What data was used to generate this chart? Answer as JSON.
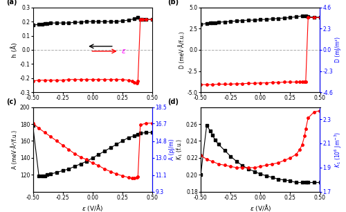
{
  "panel_a": {
    "ylabel": "h (Å)",
    "xlim": [
      -0.5,
      0.5
    ],
    "ylim": [
      -0.3,
      0.3
    ],
    "yticks": [
      -0.3,
      -0.2,
      -0.1,
      0.0,
      0.1,
      0.2,
      0.3
    ],
    "xticks": [
      -0.5,
      -0.25,
      0.0,
      0.25,
      0.5
    ],
    "black_x": [
      -0.5,
      -0.45,
      -0.42,
      -0.4,
      -0.38,
      -0.35,
      -0.3,
      -0.25,
      -0.2,
      -0.15,
      -0.1,
      -0.05,
      0.0,
      0.05,
      0.1,
      0.15,
      0.2,
      0.25,
      0.3,
      0.35,
      0.38,
      0.4,
      0.42,
      0.45,
      0.5
    ],
    "black_y": [
      0.175,
      0.18,
      0.18,
      0.185,
      0.185,
      0.19,
      0.19,
      0.19,
      0.19,
      0.195,
      0.195,
      0.2,
      0.2,
      0.2,
      0.2,
      0.2,
      0.2,
      0.205,
      0.21,
      0.22,
      0.23,
      0.215,
      0.215,
      0.215,
      0.215
    ],
    "red_x": [
      -0.5,
      -0.45,
      -0.4,
      -0.35,
      -0.3,
      -0.25,
      -0.2,
      -0.15,
      -0.1,
      -0.05,
      0.0,
      0.05,
      0.1,
      0.15,
      0.2,
      0.25,
      0.3,
      0.33,
      0.35,
      0.37,
      0.38,
      0.4,
      0.42,
      0.45,
      0.5
    ],
    "red_y": [
      -0.22,
      -0.215,
      -0.215,
      -0.215,
      -0.215,
      -0.215,
      -0.21,
      -0.21,
      -0.21,
      -0.21,
      -0.21,
      -0.21,
      -0.21,
      -0.21,
      -0.21,
      -0.21,
      -0.215,
      -0.22,
      -0.23,
      -0.235,
      -0.22,
      0.215,
      0.215,
      0.215,
      0.215
    ],
    "label": "(a)"
  },
  "panel_b": {
    "ylabel_left": "D (meV·Å/f.u.)",
    "ylabel_right": "D (mJ/m²)",
    "xlim": [
      -0.5,
      0.5
    ],
    "ylim_left": [
      -5.0,
      5.0
    ],
    "ylim_right": [
      -4.6,
      4.6
    ],
    "yticks_left": [
      -5.0,
      -2.5,
      0.0,
      2.5,
      5.0
    ],
    "yticks_right": [
      -4.6,
      -2.3,
      0.0,
      2.3,
      4.6
    ],
    "xticks": [
      -0.5,
      -0.25,
      0.0,
      0.25,
      0.5
    ],
    "black_x": [
      -0.5,
      -0.45,
      -0.42,
      -0.4,
      -0.38,
      -0.35,
      -0.3,
      -0.25,
      -0.2,
      -0.15,
      -0.1,
      -0.05,
      0.0,
      0.05,
      0.1,
      0.15,
      0.2,
      0.25,
      0.3,
      0.35,
      0.38,
      0.4,
      0.45,
      0.5
    ],
    "black_y": [
      3.0,
      3.1,
      3.15,
      3.2,
      3.2,
      3.25,
      3.3,
      3.35,
      3.4,
      3.45,
      3.5,
      3.5,
      3.55,
      3.6,
      3.65,
      3.7,
      3.75,
      3.8,
      3.9,
      4.0,
      4.0,
      3.9,
      3.85,
      3.85
    ],
    "red_x": [
      -0.5,
      -0.45,
      -0.4,
      -0.35,
      -0.3,
      -0.25,
      -0.2,
      -0.15,
      -0.1,
      -0.05,
      0.0,
      0.05,
      0.1,
      0.15,
      0.2,
      0.25,
      0.3,
      0.33,
      0.35,
      0.37,
      0.38,
      0.4,
      0.45,
      0.5
    ],
    "red_y": [
      -4.1,
      -4.1,
      -4.1,
      -4.05,
      -4.05,
      -4.05,
      -4.0,
      -4.0,
      -3.95,
      -3.95,
      -3.9,
      -3.9,
      -3.85,
      -3.85,
      -3.8,
      -3.8,
      -3.8,
      -3.8,
      -3.8,
      -3.8,
      -3.75,
      3.8,
      3.8,
      3.8
    ],
    "label": "(b)"
  },
  "panel_c": {
    "xlabel": "ε (V/Å)",
    "ylabel_left": "A (meV·Å²/f.u.)",
    "ylabel_right": "A (pJ/m)",
    "xlim": [
      -0.5,
      0.5
    ],
    "ylim_left": [
      100,
      200
    ],
    "ylim_right": [
      9.3,
      18.5
    ],
    "yticks_left": [
      120,
      140,
      160,
      180,
      200
    ],
    "yticks_right": [
      9.3,
      11.1,
      13.0,
      14.8,
      16.7,
      18.5
    ],
    "xticks": [
      -0.5,
      -0.25,
      0.0,
      0.25,
      0.5
    ],
    "black_x": [
      -0.5,
      -0.45,
      -0.42,
      -0.4,
      -0.38,
      -0.35,
      -0.3,
      -0.25,
      -0.2,
      -0.15,
      -0.1,
      -0.05,
      0.0,
      0.05,
      0.1,
      0.15,
      0.2,
      0.25,
      0.3,
      0.35,
      0.38,
      0.4,
      0.45,
      0.5
    ],
    "black_y": [
      178,
      119,
      119,
      119,
      120,
      121,
      123,
      125,
      127,
      130,
      133,
      136,
      140,
      144,
      148,
      152,
      156,
      160,
      164,
      166,
      168,
      169,
      170,
      170
    ],
    "red_x": [
      -0.5,
      -0.45,
      -0.4,
      -0.35,
      -0.3,
      -0.25,
      -0.2,
      -0.15,
      -0.1,
      -0.05,
      0.0,
      0.05,
      0.1,
      0.15,
      0.2,
      0.25,
      0.3,
      0.33,
      0.35,
      0.37,
      0.38,
      0.4,
      0.45,
      0.5
    ],
    "red_y": [
      181,
      175,
      170,
      165,
      160,
      155,
      150,
      145,
      141,
      138,
      134,
      131,
      127,
      124,
      121,
      119,
      117,
      116,
      116,
      117,
      118,
      179,
      181,
      181
    ],
    "label": "(c)"
  },
  "panel_d": {
    "xlabel": "ε (V/Å)",
    "ylabel_left": "K₁ (f.u.)",
    "ylabel_right": "K₁ (10⁶ Jm⁻³)",
    "xlim": [
      -0.5,
      0.5
    ],
    "ylim_left": [
      0.18,
      0.28
    ],
    "ylim_right": [
      1.7,
      2.4
    ],
    "yticks_left": [
      0.18,
      0.2,
      0.22,
      0.24,
      0.26
    ],
    "yticks_right": [
      1.7,
      1.9,
      2.1,
      2.3
    ],
    "xticks": [
      -0.5,
      -0.25,
      0.0,
      0.25,
      0.5
    ],
    "black_x": [
      -0.5,
      -0.45,
      -0.42,
      -0.4,
      -0.38,
      -0.35,
      -0.3,
      -0.25,
      -0.2,
      -0.15,
      -0.1,
      -0.05,
      0.0,
      0.05,
      0.1,
      0.15,
      0.2,
      0.25,
      0.3,
      0.35,
      0.38,
      0.4,
      0.45,
      0.5
    ],
    "black_y": [
      0.2,
      0.258,
      0.252,
      0.247,
      0.241,
      0.236,
      0.229,
      0.222,
      0.216,
      0.211,
      0.207,
      0.204,
      0.201,
      0.199,
      0.197,
      0.195,
      0.194,
      0.193,
      0.191,
      0.191,
      0.191,
      0.191,
      0.191,
      0.191
    ],
    "red_x": [
      -0.5,
      -0.45,
      -0.4,
      -0.35,
      -0.3,
      -0.25,
      -0.2,
      -0.15,
      -0.1,
      -0.05,
      0.0,
      0.05,
      0.1,
      0.15,
      0.2,
      0.25,
      0.3,
      0.33,
      0.35,
      0.37,
      0.38,
      0.4,
      0.45,
      0.5
    ],
    "red_y": [
      2.0,
      1.97,
      1.95,
      1.93,
      1.92,
      1.91,
      1.9,
      1.9,
      1.9,
      1.9,
      1.91,
      1.92,
      1.93,
      1.94,
      1.96,
      1.98,
      2.01,
      2.05,
      2.09,
      2.16,
      2.22,
      2.31,
      2.36,
      2.37
    ],
    "label": "(d)"
  },
  "colors": {
    "black": "#000000",
    "red": "#FF0000",
    "blue": "#0000FF",
    "dashed_gray": "#AAAAAA"
  }
}
